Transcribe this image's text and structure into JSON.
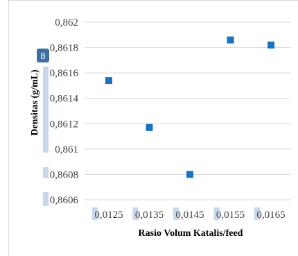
{
  "chart_data": {
    "type": "scatter",
    "title": "",
    "xlabel": "Rasio Volum Katalis/feed",
    "ylabel": "Densitas (g/mL)",
    "x_categories": [
      "0,0125",
      "0,0135",
      "0,0145",
      "0,0155",
      "0,0165"
    ],
    "y_ticks": [
      "0,8606",
      "0,8608",
      "0,861",
      "0,8612",
      "0,8614",
      "0,8616",
      "0,8618",
      "0,862"
    ],
    "ylim": [
      0.8606,
      0.862
    ],
    "grid": true,
    "legend": "none",
    "series": [
      {
        "marker": "square",
        "color": "#1a72c1",
        "points": [
          {
            "x": "0,0125",
            "y": 0.86154
          },
          {
            "x": "0,0135",
            "y": 0.86117
          },
          {
            "x": "0,0145",
            "y": 0.8608
          },
          {
            "x": "0,0155",
            "y": 0.86186
          },
          {
            "x": "0,0165",
            "y": 0.86182
          }
        ]
      }
    ]
  },
  "overlay": {
    "badge_label": "8",
    "badge_color": "#3d6fa3",
    "highlight_color": "#c9d7ec"
  }
}
